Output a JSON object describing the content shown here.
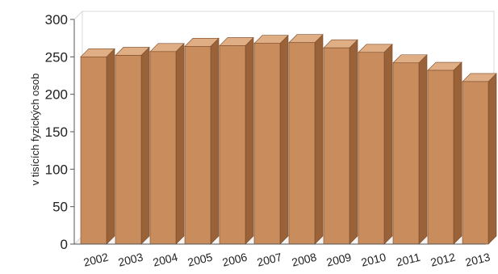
{
  "chart_data": {
    "type": "bar",
    "title": "",
    "xlabel": "",
    "ylabel": "v tisících fyzických osob",
    "ylim": [
      0,
      300
    ],
    "yticks": [
      0,
      50,
      100,
      150,
      200,
      250,
      300
    ],
    "categories": [
      "2002",
      "2003",
      "2004",
      "2005",
      "2006",
      "2007",
      "2008",
      "2009",
      "2010",
      "2011",
      "2012",
      "2013"
    ],
    "values": [
      250,
      252,
      257,
      264,
      265,
      268,
      269,
      262,
      256,
      242,
      232,
      217
    ],
    "grid": false,
    "legend": "none",
    "three_d": true,
    "colors": {
      "bar_front": "#c98c5d",
      "bar_side": "#9a6238",
      "bar_top": "#dfae85",
      "bar_outline": "#7a4a28",
      "axis": "#555555",
      "wall": "#d8d8d8"
    }
  }
}
